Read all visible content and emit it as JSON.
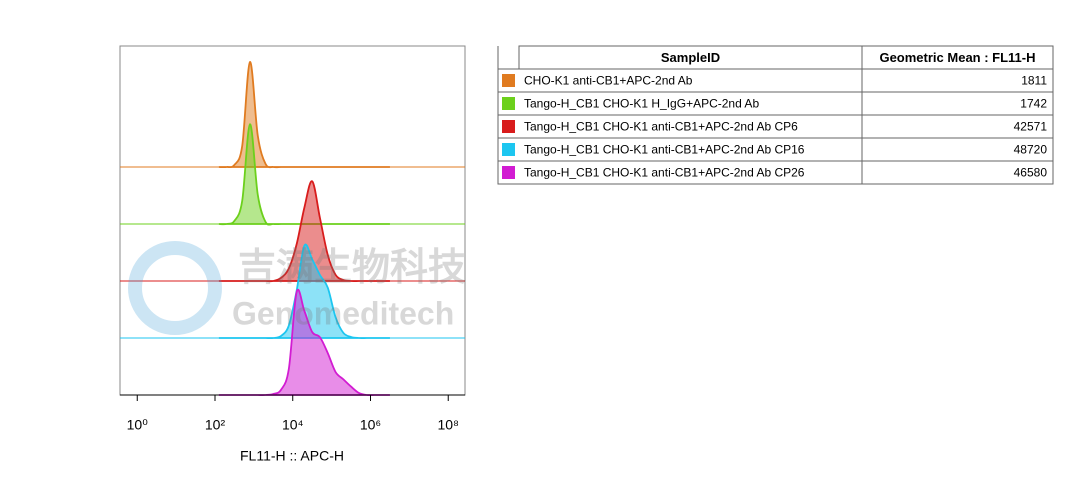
{
  "chart_data": {
    "type": "histogram-overlay",
    "xlabel": "FL11-H :: APC-H",
    "log_x": true,
    "xlim": [
      0.36,
      270000000
    ],
    "xticks": [
      {
        "value": 1,
        "label": "10⁰"
      },
      {
        "value": 100,
        "label": "10²"
      },
      {
        "value": 10000,
        "label": "10⁴"
      },
      {
        "value": 1000000,
        "label": "10⁶"
      },
      {
        "value": 100000000,
        "label": "10⁸"
      }
    ],
    "ylim": [
      0,
      100
    ],
    "x": [
      126,
      200,
      316,
      501,
      794,
      1259,
      1995,
      3162,
      5012,
      7943,
      12589,
      19953,
      31623,
      50119,
      79433,
      125893,
      199526,
      316228,
      501187,
      794328,
      1258925,
      1995262,
      3162278
    ],
    "series": [
      {
        "name": "CHO-K1 anti-CB1+APC-2nd Ab",
        "color": "#e07b20",
        "values": [
          0,
          0,
          2,
          20,
          100,
          30,
          3,
          0,
          0,
          0,
          0,
          0,
          0,
          0,
          0,
          0,
          0,
          0,
          0,
          0,
          0,
          0,
          0
        ]
      },
      {
        "name": "Tango-H_CB1 CHO-K1 H_IgG+APC-2nd Ab",
        "color": "#6cd01c",
        "values": [
          0,
          0,
          3,
          22,
          95,
          28,
          2,
          0,
          0,
          0,
          0,
          0,
          0,
          0,
          0,
          0,
          0,
          0,
          0,
          0,
          0,
          0,
          0
        ]
      },
      {
        "name": "Tango-H_CB1 CHO-K1 anti-CB1+APC-2nd Ab CP6",
        "color": "#d81c1c",
        "values": [
          0,
          0,
          0,
          0,
          0,
          0,
          0,
          0,
          3,
          12,
          35,
          70,
          95,
          60,
          25,
          6,
          1,
          0,
          0,
          0,
          0,
          0,
          0
        ]
      },
      {
        "name": "Tango-H_CB1 CHO-K1 anti-CB1+APC-2nd Ab CP16",
        "color": "#1cc6f0",
        "values": [
          0,
          0,
          0,
          0,
          0,
          0,
          0,
          0,
          2,
          12,
          45,
          88,
          75,
          60,
          48,
          20,
          5,
          1,
          0,
          0,
          0,
          0,
          0
        ]
      },
      {
        "name": "Tango-H_CB1 CHO-K1 anti-CB1+APC-2nd Ab CP26",
        "color": "#d21cd2",
        "values": [
          0,
          0,
          0,
          0,
          0,
          0,
          0,
          1,
          5,
          25,
          98,
          80,
          60,
          55,
          40,
          22,
          15,
          8,
          2,
          0,
          0,
          0,
          0
        ]
      }
    ]
  },
  "table": {
    "columns": [
      "SampleID",
      "Geometric Mean : FL11-H"
    ],
    "values": [
      1811,
      1742,
      42571,
      48720,
      46580
    ]
  },
  "watermark": {
    "cn": "吉满生物科技",
    "en": "Genomeditech"
  }
}
